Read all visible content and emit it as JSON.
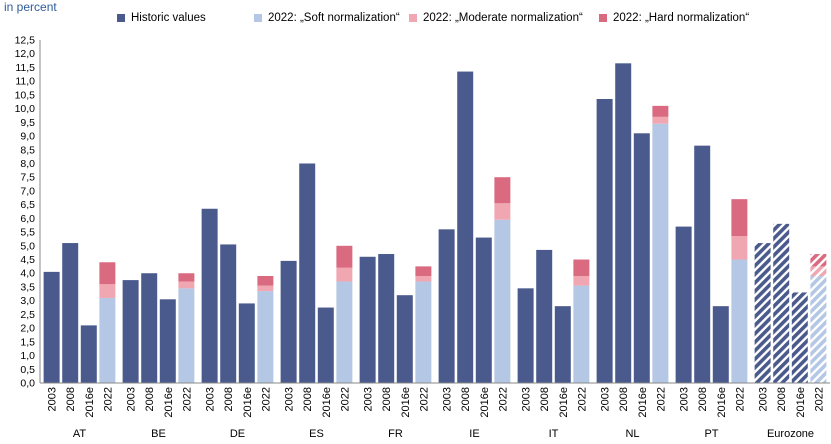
{
  "unit_label": "in percent",
  "legend": [
    {
      "label": "Historic values",
      "color": "#4a5a8c"
    },
    {
      "label": "2022: „Soft normalization“",
      "color": "#b4c7e4"
    },
    {
      "label": "2022: „Moderate normalization“",
      "color": "#f0a7b2"
    },
    {
      "label": "2022: „Hard normalization“",
      "color": "#d96a80"
    }
  ],
  "chart_data": {
    "type": "bar",
    "ylim": [
      0,
      12.5
    ],
    "yticks": [
      "0,0",
      "0,5",
      "1,0",
      "1,5",
      "2,0",
      "2,5",
      "3,0",
      "3,5",
      "4,0",
      "4,5",
      "5,0",
      "5,5",
      "6,0",
      "6,5",
      "7,0",
      "7,5",
      "8,0",
      "8,5",
      "9,0",
      "9,5",
      "10,0",
      "10,5",
      "11,0",
      "11,5",
      "12,0",
      "12,5"
    ],
    "grid": false,
    "legend_position": "top",
    "groups": [
      {
        "name": "AT",
        "historic": [
          {
            "x": "2003",
            "value": 4.05
          },
          {
            "x": "2008",
            "value": 5.1
          },
          {
            "x": "2016e",
            "value": 2.1
          }
        ],
        "scenario": {
          "x": "2022",
          "soft": 3.1,
          "moderate": 3.6,
          "hard": 4.4
        }
      },
      {
        "name": "BE",
        "historic": [
          {
            "x": "2003",
            "value": 3.75
          },
          {
            "x": "2008",
            "value": 4.0
          },
          {
            "x": "2016e",
            "value": 3.05
          }
        ],
        "scenario": {
          "x": "2022",
          "soft": 3.45,
          "moderate": 3.7,
          "hard": 4.0
        }
      },
      {
        "name": "DE",
        "historic": [
          {
            "x": "2003",
            "value": 6.35
          },
          {
            "x": "2008",
            "value": 5.05
          },
          {
            "x": "2016e",
            "value": 2.9
          }
        ],
        "scenario": {
          "x": "2022",
          "soft": 3.35,
          "moderate": 3.55,
          "hard": 3.9
        }
      },
      {
        "name": "ES",
        "historic": [
          {
            "x": "2003",
            "value": 4.45
          },
          {
            "x": "2008",
            "value": 8.0
          },
          {
            "x": "2016e",
            "value": 2.75
          }
        ],
        "scenario": {
          "x": "2022",
          "soft": 3.7,
          "moderate": 4.2,
          "hard": 5.0
        }
      },
      {
        "name": "FR",
        "historic": [
          {
            "x": "2003",
            "value": 4.6
          },
          {
            "x": "2008",
            "value": 4.7
          },
          {
            "x": "2016e",
            "value": 3.2
          }
        ],
        "scenario": {
          "x": "2022",
          "soft": 3.7,
          "moderate": 3.9,
          "hard": 4.25
        }
      },
      {
        "name": "IE",
        "historic": [
          {
            "x": "2003",
            "value": 5.6
          },
          {
            "x": "2008",
            "value": 11.35
          },
          {
            "x": "2016e",
            "value": 5.3
          }
        ],
        "scenario": {
          "x": "2022",
          "soft": 5.95,
          "moderate": 6.55,
          "hard": 7.5
        }
      },
      {
        "name": "IT",
        "historic": [
          {
            "x": "2003",
            "value": 3.45
          },
          {
            "x": "2008",
            "value": 4.85
          },
          {
            "x": "2016e",
            "value": 2.8
          }
        ],
        "scenario": {
          "x": "2022",
          "soft": 3.55,
          "moderate": 3.9,
          "hard": 4.5
        }
      },
      {
        "name": "NL",
        "historic": [
          {
            "x": "2003",
            "value": 10.35
          },
          {
            "x": "2008",
            "value": 11.65
          },
          {
            "x": "2016e",
            "value": 9.1
          }
        ],
        "scenario": {
          "x": "2022",
          "soft": 9.45,
          "moderate": 9.7,
          "hard": 10.1
        }
      },
      {
        "name": "PT",
        "historic": [
          {
            "x": "2003",
            "value": 5.7
          },
          {
            "x": "2008",
            "value": 8.65
          },
          {
            "x": "2016e",
            "value": 2.8
          }
        ],
        "scenario": {
          "x": "2022",
          "soft": 4.5,
          "moderate": 5.35,
          "hard": 6.7
        }
      },
      {
        "name": "Eurozone",
        "hatched": true,
        "historic": [
          {
            "x": "2003",
            "value": 5.1
          },
          {
            "x": "2008",
            "value": 5.8
          },
          {
            "x": "2016e",
            "value": 3.3
          }
        ],
        "scenario": {
          "x": "2022",
          "soft": 3.9,
          "moderate": 4.25,
          "hard": 4.7
        }
      }
    ]
  }
}
